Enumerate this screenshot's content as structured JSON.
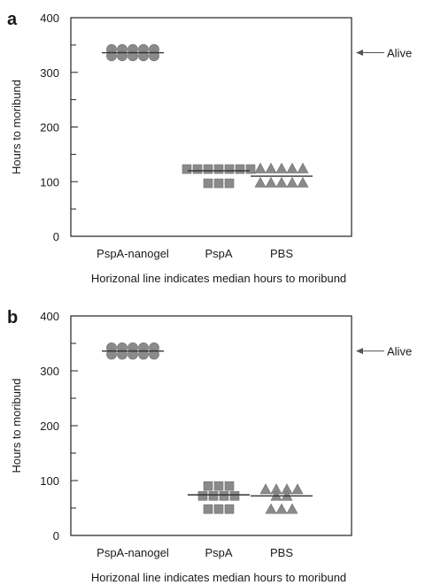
{
  "chart_data": [
    {
      "panel_label": "a",
      "type": "scatter",
      "ylabel": "Hours to moribund",
      "ylim": [
        0,
        400
      ],
      "yticks": [
        0,
        100,
        200,
        300,
        400
      ],
      "categories": [
        "PspA-nanogel",
        "PspA",
        "PBS"
      ],
      "note": "Horizonal line indicates median hours to moribund",
      "annotation": "Alive",
      "annotation_value": 336,
      "series": [
        {
          "category": "PspA-nanogel",
          "marker": "circle",
          "median": 336,
          "rows": [
            {
              "y": 342,
              "count": 5
            },
            {
              "y": 330,
              "count": 5
            }
          ]
        },
        {
          "category": "PspA",
          "marker": "square",
          "median": 120,
          "rows": [
            {
              "y": 123,
              "count": 7
            },
            {
              "y": 97,
              "count": 3
            }
          ]
        },
        {
          "category": "PBS",
          "marker": "triangle",
          "median": 110,
          "rows": [
            {
              "y": 124,
              "count": 5
            },
            {
              "y": 98,
              "count": 5
            }
          ]
        }
      ],
      "grid": false
    },
    {
      "panel_label": "b",
      "type": "scatter",
      "ylabel": "Hours to moribund",
      "ylim": [
        0,
        400
      ],
      "yticks": [
        0,
        100,
        200,
        300,
        400
      ],
      "categories": [
        "PspA-nanogel",
        "PspA",
        "PBS"
      ],
      "note": "Horizonal line indicates median hours to moribund",
      "annotation": "Alive",
      "annotation_value": 336,
      "series": [
        {
          "category": "PspA-nanogel",
          "marker": "circle",
          "median": 336,
          "rows": [
            {
              "y": 342,
              "count": 5
            },
            {
              "y": 330,
              "count": 5
            }
          ]
        },
        {
          "category": "PspA",
          "marker": "square",
          "median": 74,
          "rows": [
            {
              "y": 90,
              "count": 3
            },
            {
              "y": 72,
              "count": 4
            },
            {
              "y": 48,
              "count": 3
            }
          ]
        },
        {
          "category": "PBS",
          "marker": "triangle",
          "median": 72,
          "rows": [
            {
              "y": 84,
              "count": 4
            },
            {
              "y": 72,
              "count": 2
            },
            {
              "y": 48,
              "count": 3
            }
          ]
        }
      ],
      "grid": false
    }
  ]
}
